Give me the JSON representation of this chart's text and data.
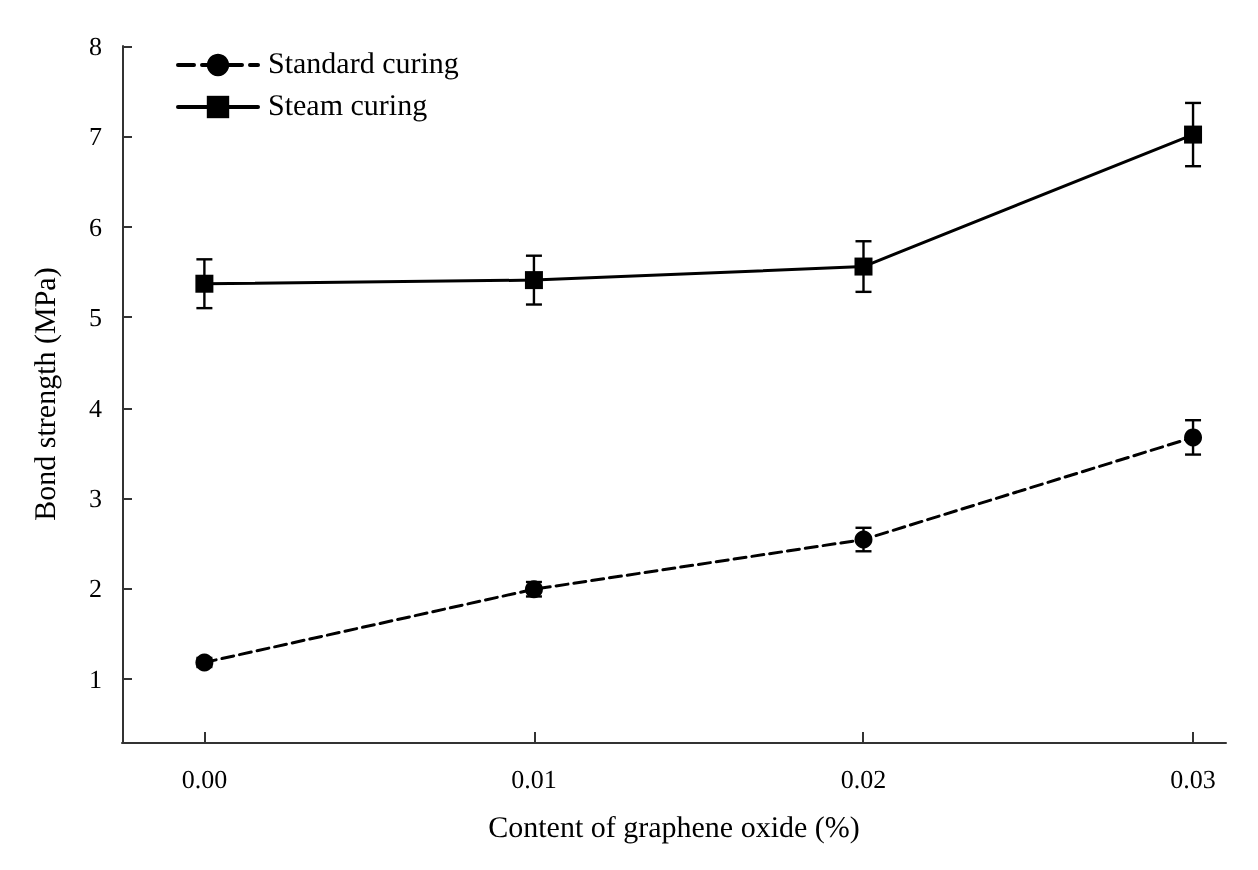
{
  "chart_data": {
    "type": "line",
    "xlabel": "Content of graphene oxide (%)",
    "ylabel": "Bond strength (MPa)",
    "x": [
      0,
      0.01,
      0.02,
      0.03
    ],
    "xlim": [
      -0.0025,
      0.031
    ],
    "xticks": [
      {
        "value": 0,
        "label": "0.00"
      },
      {
        "value": 0.01,
        "label": "0.01"
      },
      {
        "value": 0.02,
        "label": "0.02"
      },
      {
        "value": 0.03,
        "label": "0.03"
      }
    ],
    "ylim": [
      0.3,
      8
    ],
    "yticks": [
      1,
      2,
      3,
      4,
      5,
      6,
      7,
      8
    ],
    "grid": false,
    "legend": "top left",
    "series": [
      {
        "name": "Standard curing",
        "color": "#000000",
        "marker": "circle",
        "line_style": "dashed",
        "values": [
          1.18,
          1.99,
          2.54,
          3.67
        ],
        "errors": [
          0.05,
          0.08,
          0.13,
          0.19
        ]
      },
      {
        "name": "Steam curing",
        "color": "#000000",
        "marker": "square",
        "line_style": "solid",
        "values": [
          5.37,
          5.41,
          5.56,
          7.02
        ],
        "errors": [
          0.27,
          0.27,
          0.28,
          0.35
        ]
      }
    ]
  }
}
